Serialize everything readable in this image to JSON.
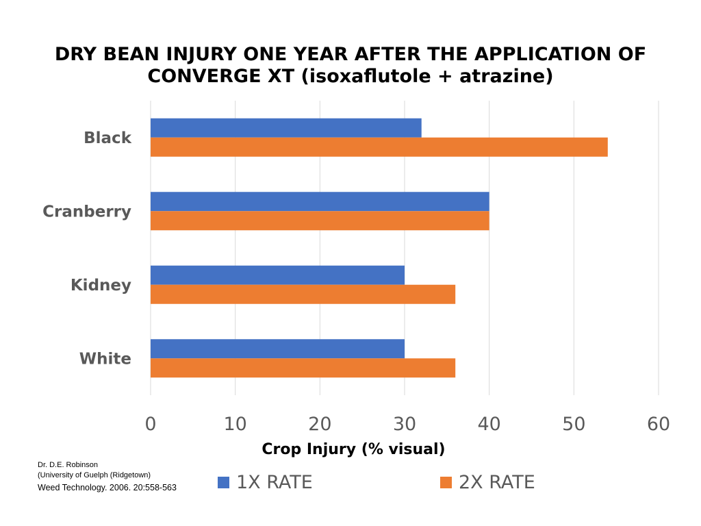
{
  "chart_data": {
    "type": "bar",
    "orientation": "horizontal",
    "title": "DRY BEAN INJURY ONE YEAR AFTER THE APPLICATION OF CONVERGE XT (isoxaflutole + atrazine)",
    "title_lines": [
      "DRY BEAN INJURY ONE YEAR AFTER THE APPLICATION OF",
      "CONVERGE XT (isoxaflutole + atrazine)"
    ],
    "xlabel": "Crop Injury (% visual)",
    "ylabel": "",
    "categories": [
      "Black",
      "Cranberry",
      "Kidney",
      "White"
    ],
    "series": [
      {
        "name": "1X RATE",
        "color": "#4472c4",
        "values": [
          32,
          40,
          30,
          30
        ]
      },
      {
        "name": "2X RATE",
        "color": "#ed7d31",
        "values": [
          54,
          40,
          36,
          36
        ]
      }
    ],
    "xlim": [
      0,
      60
    ],
    "xticks": [
      "0",
      "10",
      "20",
      "30",
      "40",
      "50",
      "60"
    ],
    "grid": "vertical",
    "legend_position": "bottom"
  },
  "credit": {
    "line1": "Dr. D.E. Robinson",
    "line2": "(University of Guelph (Ridgetown)",
    "line3": "Weed Technology. 2006. 20:558-563"
  }
}
